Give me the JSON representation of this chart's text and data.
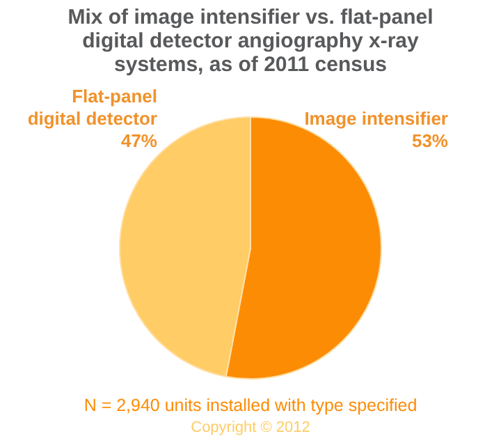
{
  "chart_data": {
    "type": "pie",
    "title": "Mix of image intensifier vs. flat-panel digital detector angiography x-ray systems, as of 2011 census",
    "categories": [
      "Image intensifier",
      "Flat-panel digital detector"
    ],
    "values": [
      53,
      47
    ],
    "colors": [
      "#fd8c05",
      "#ffcc66"
    ],
    "value_labels": [
      "53%",
      "47%"
    ],
    "annotations": [
      "N = 2,940 units installed with type specified",
      "Copyright © 2012"
    ]
  }
}
